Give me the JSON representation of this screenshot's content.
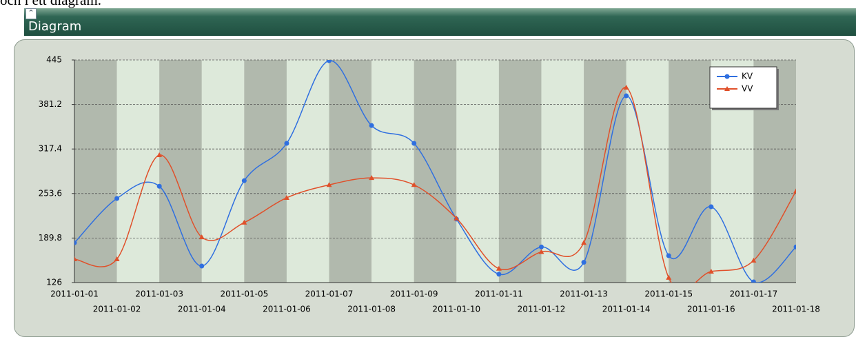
{
  "intro": "och i ett diagram.",
  "panel": {
    "title": "Diagram"
  },
  "chart_data": {
    "type": "line",
    "categories": [
      "2011-01-01",
      "2011-01-02",
      "2011-01-03",
      "2011-01-04",
      "2011-01-05",
      "2011-01-06",
      "2011-01-07",
      "2011-01-08",
      "2011-01-09",
      "2011-01-10",
      "2011-01-11",
      "2011-01-12",
      "2011-01-13",
      "2011-01-14",
      "2011-01-15",
      "2011-01-16",
      "2011-01-17",
      "2011-01-18"
    ],
    "series": [
      {
        "name": "KV",
        "color": "#2f6fe0",
        "marker": "circle",
        "values": [
          183,
          246.5,
          264,
          149.7,
          272,
          325.5,
          444,
          351,
          325.5,
          217,
          138,
          177,
          155,
          393.6,
          164.5,
          234.6,
          127,
          177
        ]
      },
      {
        "name": "VV",
        "color": "#e0502a",
        "marker": "triangle",
        "values": [
          159.6,
          159.6,
          308.7,
          191,
          212,
          247.5,
          266,
          276,
          266,
          218,
          146,
          170,
          183,
          405.5,
          133,
          141.8,
          157.6,
          257
        ]
      }
    ],
    "ylim": [
      126,
      445
    ],
    "yticks": [
      126,
      189.8,
      253.6,
      317.4,
      381.2,
      445
    ],
    "grid": true,
    "legend": "top-right",
    "smooth": true
  }
}
